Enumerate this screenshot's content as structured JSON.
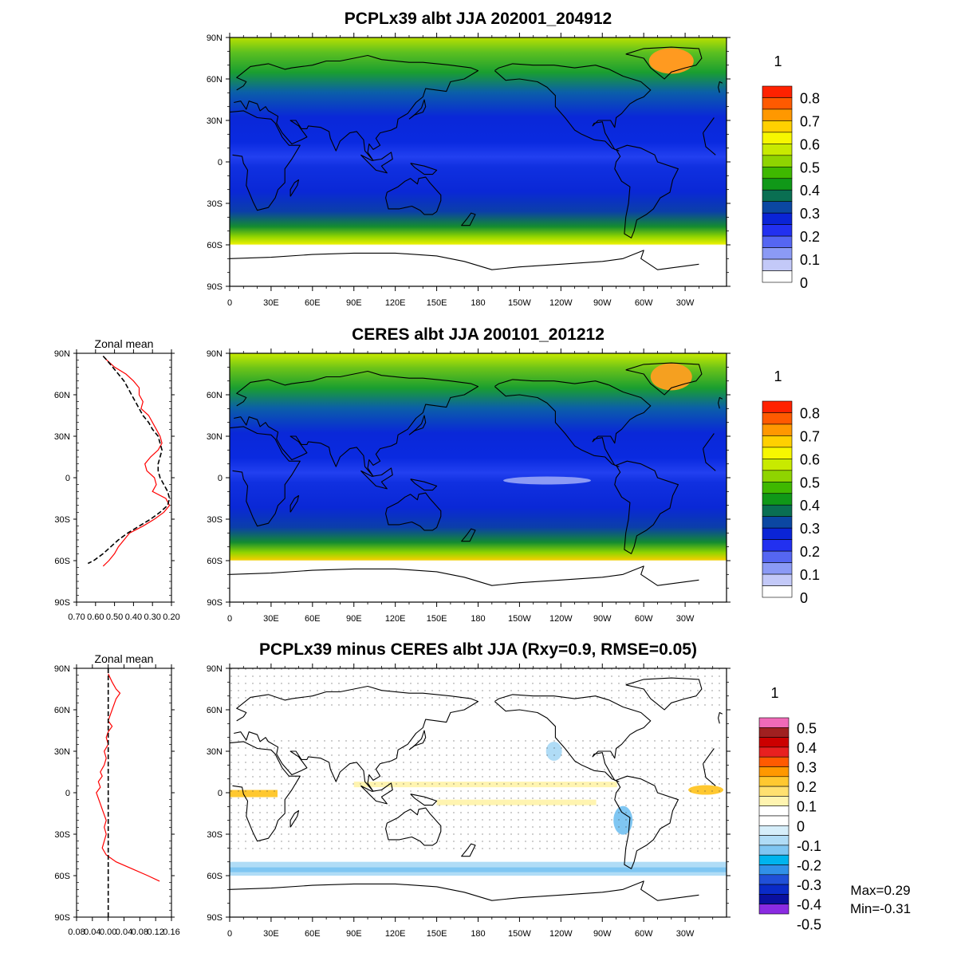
{
  "chart_data": [
    {
      "id": "model",
      "type": "heatmap",
      "title": "PCPLx39 albt JJA 202001_204912",
      "x_ticks": [
        "0",
        "30E",
        "60E",
        "90E",
        "120E",
        "150E",
        "180",
        "150W",
        "120W",
        "90W",
        "60W",
        "30W"
      ],
      "y_ticks": [
        "90N",
        "60N",
        "30N",
        "0",
        "30S",
        "60S",
        "90S"
      ],
      "xlim": [
        0,
        360
      ],
      "ylim": [
        -90,
        90
      ],
      "colorbar": {
        "unit": "1",
        "labels": [
          "0.8",
          "0.7",
          "0.6",
          "0.5",
          "0.4",
          "0.3",
          "0.2",
          "0.1",
          "0"
        ],
        "colors": [
          "#ff2200",
          "#ff5a00",
          "#ff9800",
          "#ffd000",
          "#f7f700",
          "#c8ea00",
          "#8fd400",
          "#3fb800",
          "#109818",
          "#0a6f52",
          "#0b47a2",
          "#0a24d6",
          "#2230f0",
          "#5566f2",
          "#8b9af5",
          "#c3c9f8",
          "#ffffff"
        ]
      }
    },
    {
      "id": "obs",
      "type": "heatmap",
      "title": "CERES albt JJA 200101_201212",
      "x_ticks": [
        "0",
        "30E",
        "60E",
        "90E",
        "120E",
        "150E",
        "180",
        "150W",
        "120W",
        "90W",
        "60W",
        "30W"
      ],
      "y_ticks": [
        "90N",
        "60N",
        "30N",
        "0",
        "30S",
        "60S",
        "90S"
      ],
      "xlim": [
        0,
        360
      ],
      "ylim": [
        -90,
        90
      ],
      "colorbar": {
        "unit": "1",
        "labels": [
          "0.8",
          "0.7",
          "0.6",
          "0.5",
          "0.4",
          "0.3",
          "0.2",
          "0.1",
          "0"
        ],
        "colors": [
          "#ff2200",
          "#ff5a00",
          "#ff9800",
          "#ffd000",
          "#f7f700",
          "#c8ea00",
          "#8fd400",
          "#3fb800",
          "#109818",
          "#0a6f52",
          "#0b47a2",
          "#0a24d6",
          "#2230f0",
          "#5566f2",
          "#8b9af5",
          "#c3c9f8",
          "#ffffff"
        ]
      }
    },
    {
      "id": "zonal_mean_obs",
      "type": "line",
      "title": "Zonal mean",
      "x_ticks": [
        "0.70",
        "0.60",
        "0.50",
        "0.40",
        "0.30",
        "0.20"
      ],
      "y_ticks": [
        "90N",
        "60N",
        "30N",
        "0",
        "30S",
        "60S",
        "90S"
      ],
      "xlim": [
        0.7,
        0.2
      ],
      "ylim": [
        -90,
        90
      ],
      "series": [
        {
          "color": "#ff0000",
          "dash": false,
          "lat": [
            88,
            85,
            80,
            75,
            70,
            65,
            60,
            55,
            50,
            45,
            40,
            35,
            30,
            25,
            20,
            15,
            10,
            5,
            0,
            -5,
            -10,
            -15,
            -20,
            -25,
            -30,
            -35,
            -40,
            -45,
            -50,
            -55,
            -60,
            -64
          ],
          "values": [
            0.56,
            0.54,
            0.5,
            0.44,
            0.4,
            0.37,
            0.37,
            0.35,
            0.36,
            0.32,
            0.3,
            0.28,
            0.26,
            0.25,
            0.27,
            0.31,
            0.34,
            0.33,
            0.29,
            0.28,
            0.3,
            0.23,
            0.21,
            0.24,
            0.29,
            0.35,
            0.42,
            0.45,
            0.48,
            0.5,
            0.53,
            0.56
          ]
        },
        {
          "color": "#000000",
          "dash": true,
          "lat": [
            88,
            85,
            80,
            75,
            70,
            65,
            60,
            55,
            50,
            45,
            40,
            35,
            30,
            25,
            20,
            15,
            10,
            5,
            0,
            -5,
            -10,
            -15,
            -20,
            -25,
            -30,
            -35,
            -40,
            -45,
            -50,
            -55,
            -60,
            -62
          ],
          "values": [
            0.56,
            0.54,
            0.51,
            0.48,
            0.45,
            0.43,
            0.41,
            0.39,
            0.37,
            0.35,
            0.32,
            0.3,
            0.27,
            0.26,
            0.25,
            0.26,
            0.27,
            0.27,
            0.26,
            0.24,
            0.22,
            0.21,
            0.22,
            0.26,
            0.31,
            0.37,
            0.43,
            0.48,
            0.52,
            0.56,
            0.61,
            0.64
          ]
        }
      ]
    },
    {
      "id": "diff",
      "type": "heatmap",
      "title": "PCPLx39 minus CERES albt JJA (Rxy=0.9, RMSE=0.05)",
      "x_ticks": [
        "0",
        "30E",
        "60E",
        "90E",
        "120E",
        "150E",
        "180",
        "150W",
        "120W",
        "90W",
        "60W",
        "30W"
      ],
      "y_ticks": [
        "90N",
        "60N",
        "30N",
        "0",
        "30S",
        "60S",
        "90S"
      ],
      "xlim": [
        0,
        360
      ],
      "ylim": [
        -90,
        90
      ],
      "colorbar": {
        "unit": "1",
        "labels": [
          "0.5",
          "0.4",
          "0.3",
          "0.2",
          "0.1",
          "0",
          "-0.1",
          "-0.2",
          "-0.3",
          "-0.4",
          "-0.5"
        ],
        "colors": [
          "#f06ab8",
          "#a02020",
          "#cc0000",
          "#e82020",
          "#ff5a00",
          "#ff9800",
          "#ffc830",
          "#ffe070",
          "#fff4b0",
          "#ffffff",
          "#ffffff",
          "#d6eefa",
          "#b0dcf6",
          "#7fc6f2",
          "#00b4ee",
          "#3090e8",
          "#2050d8",
          "#0a2bc8",
          "#0a10a0",
          "#8a2be2"
        ]
      },
      "max_label": "Max=0.29",
      "min_label": "Min=-0.31"
    },
    {
      "id": "zonal_mean_diff",
      "type": "line",
      "title": "Zonal mean",
      "x_ticks": [
        "0.08",
        "0.04",
        "0.00",
        "0.04",
        "0.08",
        "0.12",
        "0.16"
      ],
      "y_ticks": [
        "90N",
        "60N",
        "30N",
        "0",
        "30S",
        "60S",
        "90S"
      ],
      "xlim": [
        -0.08,
        0.16
      ],
      "ylim": [
        -90,
        90
      ],
      "series": [
        {
          "color": "#ff0000",
          "dash": false,
          "lat": [
            86,
            80,
            75,
            72,
            68,
            64,
            60,
            56,
            52,
            48,
            44,
            40,
            35,
            30,
            25,
            20,
            15,
            12,
            8,
            4,
            0,
            -4,
            -8,
            -12,
            -16,
            -20,
            -25,
            -30,
            -35,
            -40,
            -45,
            -50,
            -55,
            -60,
            -64
          ],
          "values": [
            0.0,
            0.01,
            0.02,
            0.03,
            0.02,
            0.015,
            0.01,
            0.005,
            0.0,
            0.01,
            0.0,
            -0.005,
            0.0,
            -0.01,
            -0.005,
            -0.01,
            -0.02,
            -0.015,
            -0.025,
            -0.02,
            -0.03,
            -0.025,
            -0.02,
            -0.015,
            -0.01,
            -0.005,
            -0.01,
            -0.005,
            -0.01,
            -0.015,
            -0.005,
            0.02,
            0.06,
            0.1,
            0.13
          ]
        },
        {
          "color": "#000000",
          "dash": true,
          "lat": [
            90,
            -90
          ],
          "values": [
            0,
            0
          ]
        }
      ]
    }
  ]
}
